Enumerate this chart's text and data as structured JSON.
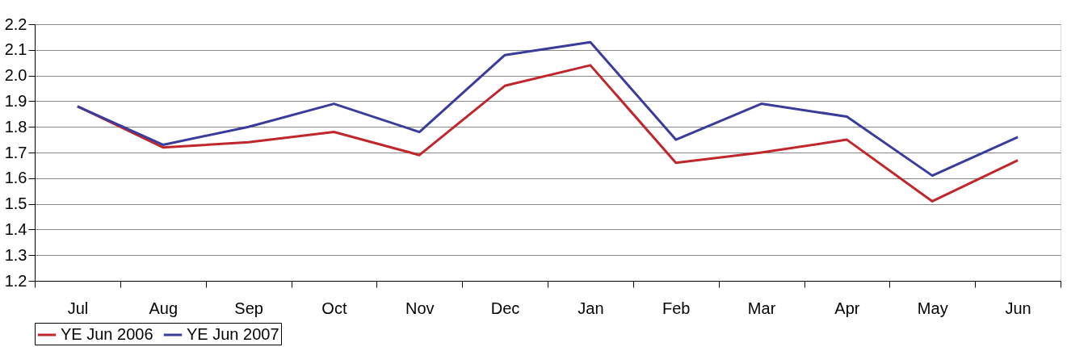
{
  "chart_data": {
    "type": "line",
    "categories": [
      "Jul",
      "Aug",
      "Sep",
      "Oct",
      "Nov",
      "Dec",
      "Jan",
      "Feb",
      "Mar",
      "Apr",
      "May",
      "Jun"
    ],
    "series": [
      {
        "name": "YE Jun 2006",
        "color": "#c0272d",
        "values": [
          1.88,
          1.72,
          1.74,
          1.78,
          1.69,
          1.96,
          2.04,
          1.66,
          1.7,
          1.75,
          1.51,
          1.67
        ]
      },
      {
        "name": "YE Jun 2007",
        "color": "#3b3b9c",
        "values": [
          1.88,
          1.73,
          1.8,
          1.89,
          1.78,
          2.08,
          2.13,
          1.75,
          1.89,
          1.84,
          1.61,
          1.76
        ]
      }
    ],
    "ylim": [
      1.2,
      2.2
    ],
    "yticks": [
      {
        "value": 1.2,
        "label": "1.2"
      },
      {
        "value": 1.3,
        "label": "1.3"
      },
      {
        "value": 1.4,
        "label": "1.4"
      },
      {
        "value": 1.5,
        "label": "1.5"
      },
      {
        "value": 1.6,
        "label": "1.6"
      },
      {
        "value": 1.7,
        "label": "1.7"
      },
      {
        "value": 1.8,
        "label": "1.8"
      },
      {
        "value": 1.9,
        "label": "1.9"
      },
      {
        "value": 2.0,
        "label": "2.0"
      },
      {
        "value": 2.1,
        "label": "2.1"
      },
      {
        "value": 2.2,
        "label": "2.2"
      }
    ],
    "grid": "y",
    "legend": "bottom",
    "marker": "none",
    "line_style": "solid"
  }
}
